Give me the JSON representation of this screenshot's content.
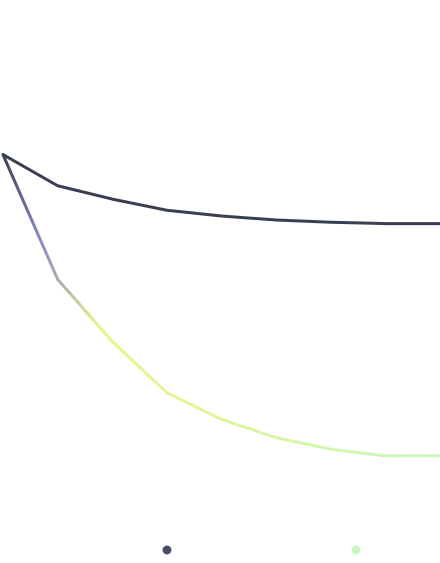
{
  "chart_data": {
    "type": "line",
    "title": "",
    "xlabel": "",
    "ylabel": "",
    "grid": false,
    "axes_visible": false,
    "legend_position": "bottom",
    "x": [
      0,
      1,
      2,
      3,
      4,
      5,
      6,
      7,
      8
    ],
    "ylim": [
      0,
      100
    ],
    "series": [
      {
        "color": "#3a3e52",
        "values": [
          72,
          65,
          62,
          59.5,
          58.2,
          57.3,
          56.8,
          56.5,
          56.5
        ]
      },
      {
        "color": "#c9f7c0",
        "gradient_colors": [
          "#3a3e52",
          "#8589c2",
          "#e8f58a",
          "#c9f7c0"
        ],
        "values": [
          72,
          44,
          30,
          18.5,
          12.5,
          8.4,
          5.8,
          4.3,
          4.3
        ]
      }
    ]
  }
}
